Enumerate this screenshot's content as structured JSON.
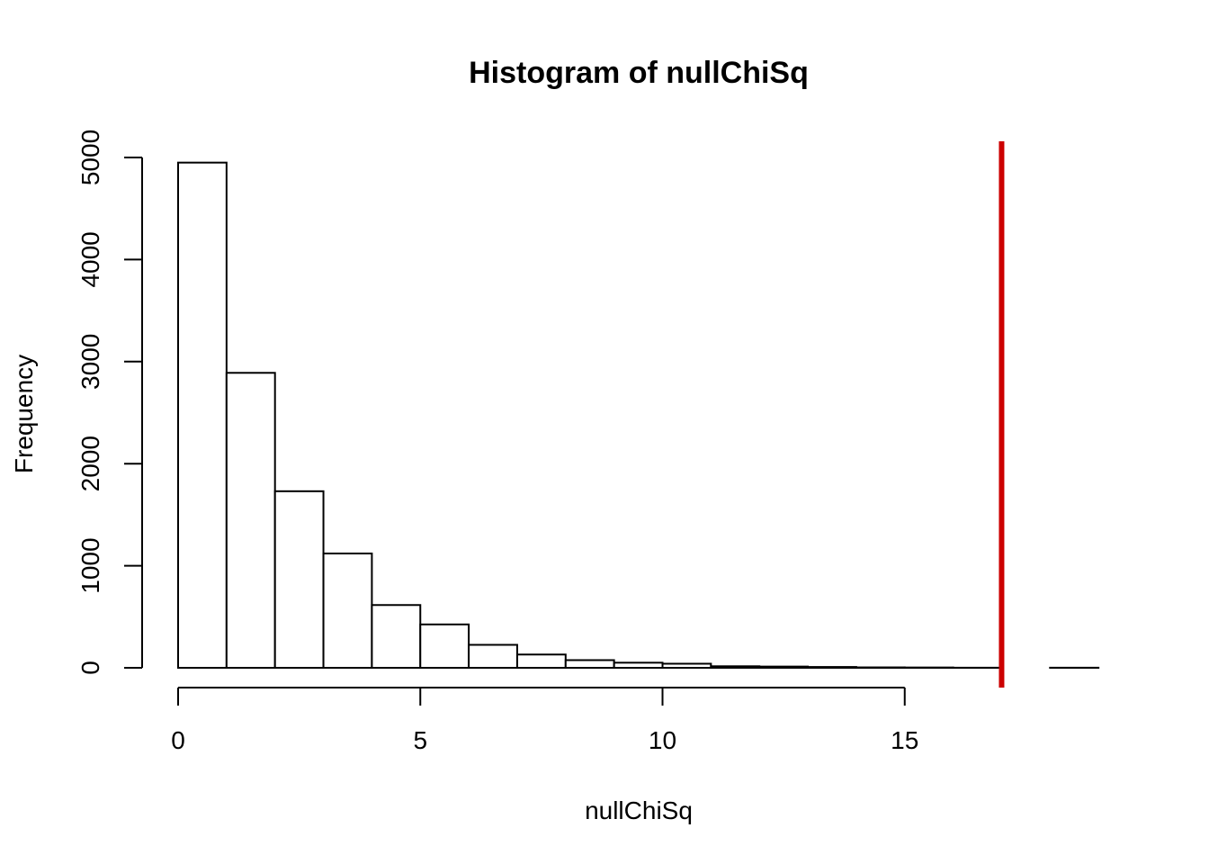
{
  "chart_data": {
    "type": "bar",
    "title": "Histogram of nullChiSq",
    "xlabel": "nullChiSq",
    "ylabel": "Frequency",
    "bin_edges": [
      0,
      1,
      2,
      3,
      4,
      5,
      6,
      7,
      8,
      9,
      10,
      11,
      12,
      13,
      14,
      15,
      16,
      17,
      18,
      19
    ],
    "values": [
      4950,
      2890,
      1730,
      1120,
      615,
      425,
      225,
      130,
      75,
      50,
      40,
      15,
      12,
      8,
      4,
      3,
      1,
      0,
      1
    ],
    "xlim": [
      0,
      19
    ],
    "ylim": [
      0,
      5000
    ],
    "x_ticks": [
      0,
      5,
      10,
      15
    ],
    "x_tick_labels": [
      "0",
      "5",
      "10",
      "15"
    ],
    "y_ticks": [
      0,
      1000,
      2000,
      3000,
      4000,
      5000
    ],
    "y_tick_labels": [
      "0",
      "1000",
      "2000",
      "3000",
      "4000",
      "5000"
    ],
    "reference_line": {
      "x": 17,
      "color": "#cc0000"
    },
    "grid": false
  }
}
